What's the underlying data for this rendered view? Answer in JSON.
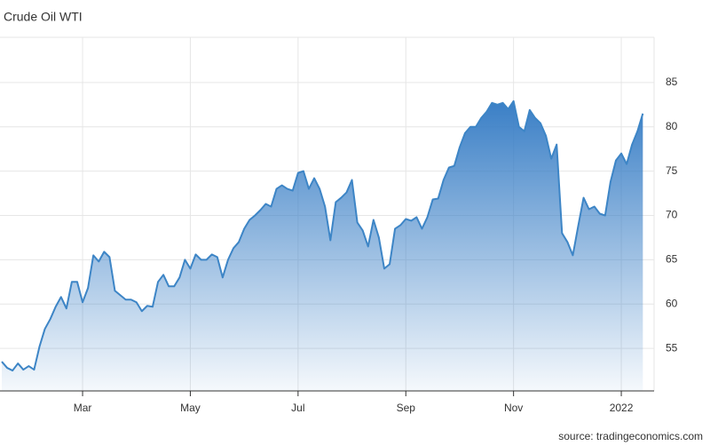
{
  "chart_data": {
    "type": "area",
    "title": "Crude Oil WTI",
    "source": "source: tradingeconomics.com",
    "color": "#3d85c6",
    "categories": [
      null,
      null,
      null,
      null,
      null,
      null,
      null,
      null,
      null,
      null,
      null,
      null,
      null,
      null,
      null,
      "Mar",
      null,
      null,
      null,
      null,
      null,
      null,
      null,
      null,
      null,
      null,
      null,
      null,
      null,
      null,
      null,
      null,
      null,
      null,
      null,
      "May",
      null,
      null,
      null,
      null,
      null,
      null,
      null,
      null,
      null,
      null,
      null,
      null,
      null,
      null,
      null,
      null,
      null,
      null,
      null,
      "Jul",
      null,
      null,
      null,
      null,
      null,
      null,
      null,
      null,
      null,
      null,
      null,
      null,
      null,
      null,
      null,
      null,
      null,
      null,
      null,
      "Sep",
      null,
      null,
      null,
      null,
      null,
      null,
      null,
      null,
      null,
      null,
      null,
      null,
      null,
      null,
      null,
      null,
      null,
      null,
      null,
      "Nov",
      null,
      null,
      null,
      null,
      null,
      null,
      null,
      null,
      null,
      null,
      null,
      null,
      null,
      null,
      null,
      null,
      null,
      null,
      null,
      "2022",
      null,
      null,
      null,
      null
    ],
    "values": [
      53.5,
      52.8,
      52.5,
      53.3,
      52.6,
      53,
      52.6,
      55.2,
      57.2,
      58.3,
      59.7,
      60.8,
      59.5,
      62.5,
      62.5,
      60.2,
      61.8,
      65.5,
      64.8,
      65.9,
      65.3,
      61.5,
      61,
      60.5,
      60.5,
      60.2,
      59.2,
      59.8,
      59.7,
      62.5,
      63.3,
      62,
      62,
      63,
      65,
      64,
      65.6,
      65,
      65,
      65.6,
      65.3,
      63,
      65,
      66.3,
      67,
      68.5,
      69.5,
      70,
      70.6,
      71.3,
      71,
      73,
      73.4,
      73,
      72.8,
      74.8,
      75,
      73,
      74.2,
      73,
      71,
      67.2,
      71.5,
      72,
      72.6,
      74,
      69.2,
      68.3,
      66.5,
      69.5,
      67.5,
      64,
      64.5,
      68.5,
      68.9,
      69.6,
      69.4,
      69.8,
      68.5,
      69.8,
      71.8,
      71.9,
      74,
      75.4,
      75.6,
      77.7,
      79.3,
      80,
      80,
      81,
      81.7,
      82.7,
      82.5,
      82.7,
      82,
      82.9,
      80,
      79.5,
      81.9,
      81,
      80.4,
      79,
      76.4,
      78,
      68,
      67,
      65.5,
      68.8,
      72,
      70.7,
      71,
      70.2,
      70,
      73.8,
      76.2,
      77,
      75.8,
      78,
      79.5,
      81.5
    ],
    "ylim": [
      50.2,
      90.1
    ],
    "yticks": [
      55,
      60,
      65,
      70,
      75,
      80,
      85
    ],
    "grid": true
  }
}
